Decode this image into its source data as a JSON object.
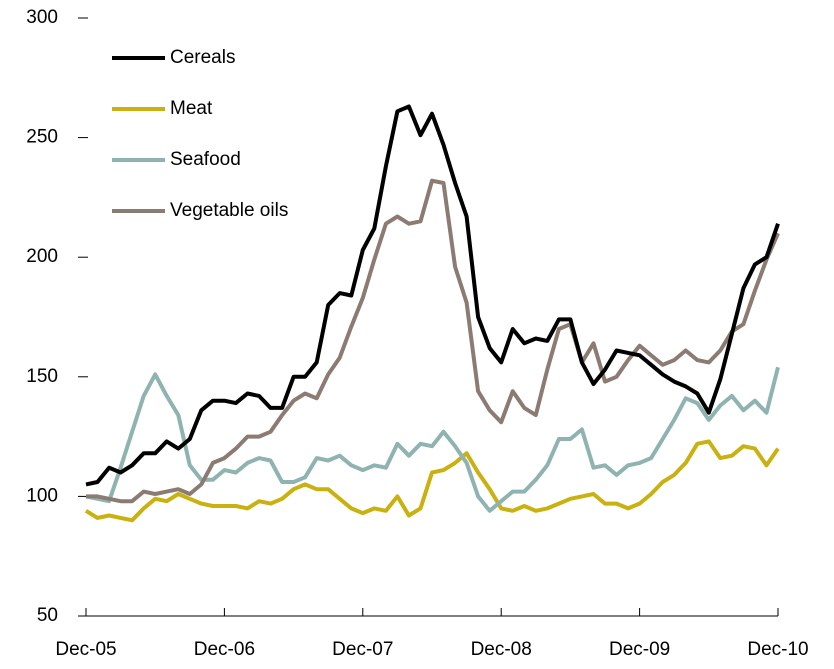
{
  "chart_data": {
    "type": "line",
    "categories": [
      "Dec-05",
      null,
      null,
      null,
      null,
      null,
      null,
      null,
      null,
      null,
      null,
      null,
      "Dec-06",
      null,
      null,
      null,
      null,
      null,
      null,
      null,
      null,
      null,
      null,
      null,
      "Dec-07",
      null,
      null,
      null,
      null,
      null,
      null,
      null,
      null,
      null,
      null,
      null,
      "Dec-08",
      null,
      null,
      null,
      null,
      null,
      null,
      null,
      null,
      null,
      null,
      null,
      "Dec-09",
      null,
      null,
      null,
      null,
      null,
      null,
      null,
      null,
      null,
      null,
      null,
      "Dec-10"
    ],
    "series": [
      {
        "name": "Cereals",
        "color": "#000000",
        "values": [
          105,
          106,
          112,
          110,
          113,
          118,
          118,
          123,
          120,
          124,
          136,
          140,
          140,
          139,
          143,
          142,
          137,
          137,
          150,
          150,
          156,
          180,
          185,
          184,
          203,
          212,
          238,
          261,
          263,
          251,
          260,
          247,
          231,
          217,
          175,
          162,
          156,
          170,
          164,
          166,
          165,
          174,
          174,
          156,
          147,
          153,
          161,
          160,
          159,
          155,
          151,
          148,
          146,
          143,
          135,
          149,
          168,
          187,
          197,
          200,
          214
        ]
      },
      {
        "name": "Meat",
        "color": "#c9b10f",
        "values": [
          94,
          91,
          92,
          91,
          90,
          95,
          99,
          98,
          101,
          99,
          97,
          96,
          96,
          96,
          95,
          98,
          97,
          99,
          103,
          105,
          103,
          103,
          99,
          95,
          93,
          95,
          94,
          100,
          92,
          95,
          110,
          111,
          114,
          118,
          110,
          103,
          95,
          94,
          96,
          94,
          95,
          97,
          99,
          100,
          101,
          97,
          97,
          95,
          97,
          101,
          106,
          109,
          114,
          122,
          123,
          116,
          117,
          121,
          120,
          113,
          120
        ]
      },
      {
        "name": "Seafood",
        "color": "#8fb3b0",
        "values": [
          100,
          99,
          98,
          112,
          127,
          142,
          151,
          142,
          134,
          113,
          107,
          107,
          111,
          110,
          114,
          116,
          115,
          106,
          106,
          108,
          116,
          115,
          117,
          113,
          111,
          113,
          112,
          122,
          117,
          122,
          121,
          127,
          121,
          114,
          100,
          94,
          98,
          102,
          102,
          107,
          113,
          124,
          124,
          128,
          112,
          113,
          109,
          113,
          114,
          116,
          124,
          132,
          141,
          139,
          132,
          138,
          142,
          136,
          140,
          135,
          154
        ]
      },
      {
        "name": "Vegetable oils",
        "color": "#8c7b73",
        "values": [
          100,
          100,
          99,
          98,
          98,
          102,
          101,
          102,
          103,
          101,
          105,
          114,
          116,
          120,
          125,
          125,
          127,
          134,
          140,
          143,
          141,
          151,
          158,
          171,
          183,
          199,
          214,
          217,
          214,
          215,
          232,
          231,
          196,
          181,
          144,
          136,
          131,
          144,
          137,
          134,
          153,
          170,
          172,
          156,
          164,
          148,
          150,
          157,
          163,
          159,
          155,
          157,
          161,
          157,
          156,
          161,
          169,
          172,
          186,
          199,
          210
        ]
      }
    ],
    "ylim": [
      50,
      300
    ],
    "yticks": [
      50,
      100,
      150,
      200,
      250,
      300
    ]
  }
}
